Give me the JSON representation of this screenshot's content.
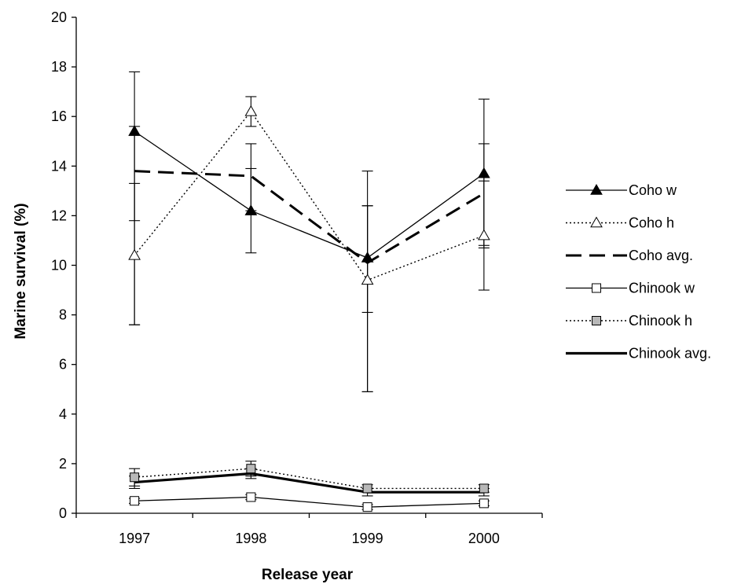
{
  "chart_data": {
    "type": "line",
    "title": "",
    "xlabel": "Release year",
    "ylabel": "Marine survival (%)",
    "categories": [
      "1997",
      "1998",
      "1999",
      "2000"
    ],
    "ylim": [
      0,
      20
    ],
    "yticks": [
      0,
      2,
      4,
      6,
      8,
      10,
      12,
      14,
      16,
      18,
      20
    ],
    "grid": false,
    "legend_position": "right",
    "series": [
      {
        "name": "Coho w",
        "style": "solid",
        "marker": "triangle-filled",
        "values": [
          15.4,
          12.2,
          10.3,
          13.7
        ],
        "error_low": [
          7.6,
          10.5,
          4.9,
          9.0
        ],
        "error_high": [
          17.8,
          14.9,
          13.8,
          16.7
        ]
      },
      {
        "name": "Coho h",
        "style": "dotted",
        "marker": "triangle-open",
        "values": [
          10.4,
          16.2,
          9.4,
          11.2
        ],
        "error_low": [
          7.6,
          15.6,
          4.9,
          10.7
        ],
        "error_high": [
          13.3,
          16.8,
          12.4,
          14.9
        ]
      },
      {
        "name": "Coho avg.",
        "style": "dashed-thick",
        "marker": "none",
        "values": [
          13.8,
          13.6,
          10.1,
          12.9
        ],
        "error_low": [
          11.8,
          12.2,
          8.1,
          10.8
        ],
        "error_high": [
          15.6,
          13.9,
          12.4,
          13.4
        ]
      },
      {
        "name": "Chinook w",
        "style": "solid",
        "marker": "square-open",
        "values": [
          0.5,
          0.65,
          0.25,
          0.4
        ],
        "error_low": [
          0.4,
          0.55,
          0.15,
          0.3
        ],
        "error_high": [
          0.6,
          0.75,
          0.35,
          0.5
        ]
      },
      {
        "name": "Chinook h",
        "style": "dotted",
        "marker": "square-gray",
        "values": [
          1.45,
          1.8,
          1.0,
          1.0
        ],
        "error_low": [
          1.1,
          1.5,
          0.85,
          0.85
        ],
        "error_high": [
          1.8,
          2.1,
          1.15,
          1.15
        ]
      },
      {
        "name": "Chinook avg.",
        "style": "solid-thick",
        "marker": "none",
        "values": [
          1.25,
          1.6,
          0.85,
          0.85
        ],
        "error_low": [
          1.0,
          1.4,
          0.7,
          0.7
        ],
        "error_high": [
          1.5,
          1.8,
          1.0,
          1.0
        ]
      }
    ]
  }
}
